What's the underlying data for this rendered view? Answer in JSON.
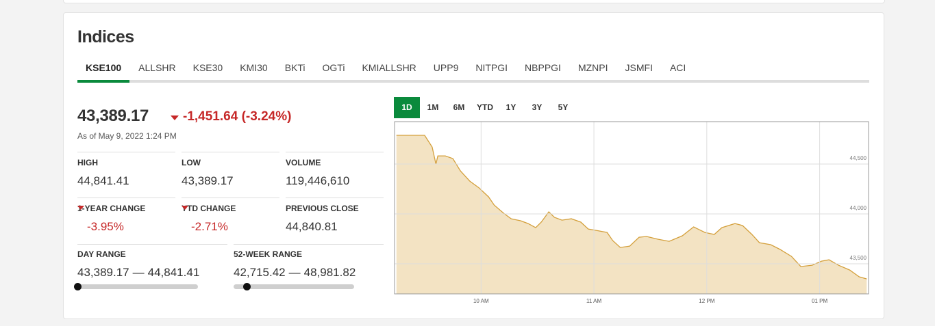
{
  "header": {
    "title": "Indices"
  },
  "tabs": [
    "KSE100",
    "ALLSHR",
    "KSE30",
    "KMI30",
    "BKTi",
    "OGTi",
    "KMIALLSHR",
    "UPP9",
    "NITPGI",
    "NBPPGI",
    "MZNPI",
    "JSMFI",
    "ACI"
  ],
  "quote": {
    "price": {
      "value": 43389.17,
      "label": "43,389.17"
    },
    "change": "-1,451.64 (-3.24%)",
    "as_of": "As of May 9, 2022 1:24 PM"
  },
  "stats": [
    {
      "label": "HIGH",
      "value": "44,841.41"
    },
    {
      "label": "LOW",
      "value": "43,389.17"
    },
    {
      "label": "VOLUME",
      "value": "119,446,610"
    },
    {
      "label": "1-YEAR CHANGE",
      "value": "-3.95%"
    },
    {
      "label": "YTD CHANGE",
      "value": "-2.71%"
    },
    {
      "label": "PREVIOUS CLOSE",
      "value": "44,840.81"
    }
  ],
  "range_separator": "—",
  "ranges": [
    {
      "label": "DAY RANGE",
      "low": {
        "value": 43389.17,
        "label": "43,389.17"
      },
      "high": {
        "value": 44841.41,
        "label": "44,841.41"
      }
    },
    {
      "label": "52-WEEK RANGE",
      "low": {
        "value": 42715.42,
        "label": "42,715.42"
      },
      "high": {
        "value": 48981.82,
        "label": "48,981.82"
      }
    }
  ],
  "period_buttons": [
    "1D",
    "1M",
    "6M",
    "YTD",
    "1Y",
    "3Y",
    "5Y"
  ],
  "chart_data": {
    "type": "area",
    "color": "#d4a03c",
    "x": [
      555,
      570,
      574,
      576,
      577,
      581,
      585,
      589,
      594,
      599,
      604,
      607,
      612,
      616,
      621,
      625,
      629,
      632,
      636,
      639,
      643,
      648,
      653,
      657,
      661,
      667,
      670,
      674,
      679,
      684,
      688,
      694,
      700,
      707,
      713,
      719,
      724,
      728,
      735,
      739,
      744,
      748,
      754,
      759,
      765,
      770,
      776,
      781,
      785,
      790,
      796,
      801,
      805
    ],
    "values": [
      44788,
      44788,
      44671,
      44500,
      44582,
      44582,
      44555,
      44432,
      44329,
      44260,
      44171,
      44089,
      44007,
      43952,
      43932,
      43904,
      43863,
      43918,
      44021,
      43966,
      43938,
      43952,
      43918,
      43849,
      43836,
      43815,
      43733,
      43664,
      43678,
      43767,
      43774,
      43747,
      43726,
      43781,
      43870,
      43815,
      43795,
      43863,
      43904,
      43884,
      43795,
      43712,
      43692,
      43644,
      43575,
      43473,
      43486,
      43527,
      43541,
      43486,
      43438,
      43370,
      43349
    ],
    "xlim": [
      554,
      806
    ],
    "ylim": [
      43199,
      44925
    ],
    "xticks": [
      {
        "value": 600,
        "label": "10 AM"
      },
      {
        "value": 660,
        "label": "11 AM"
      },
      {
        "value": 720,
        "label": "12 PM"
      },
      {
        "value": 780,
        "label": "01 PM"
      }
    ],
    "yticks": [
      {
        "value": 43500,
        "label": "43,500"
      },
      {
        "value": 44000,
        "label": "44,000"
      },
      {
        "value": 44500,
        "label": "44,500"
      }
    ],
    "grid": true
  }
}
